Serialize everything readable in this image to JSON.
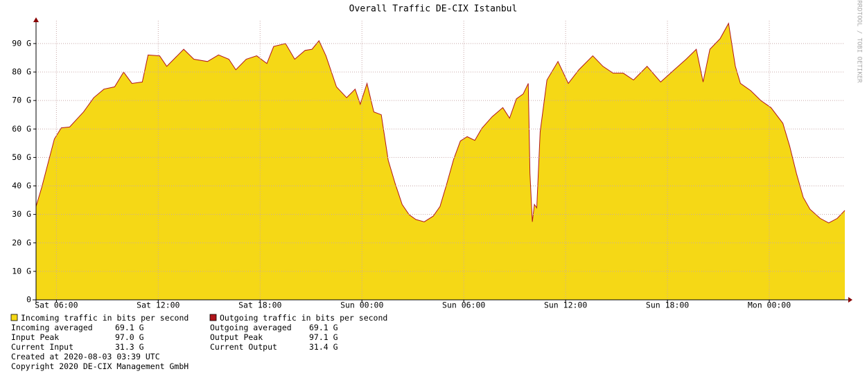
{
  "chart_data": {
    "type": "area",
    "title": "Overall Traffic DE-CIX Istanbul",
    "side_label": "RRDTOOL / TOBI OETIKER",
    "x": [
      4.8,
      5.14,
      5.55,
      5.88,
      6.29,
      6.78,
      7.18,
      7.6,
      8.2,
      8.8,
      9.43,
      9.96,
      10.45,
      11.06,
      11.4,
      12.08,
      12.5,
      13.5,
      14.1,
      14.9,
      15.55,
      16.16,
      16.57,
      17.18,
      17.8,
      18.4,
      18.8,
      19.5,
      20.04,
      20.65,
      21.06,
      21.47,
      21.88,
      22.5,
      23.1,
      23.6,
      23.9,
      24.3,
      24.7,
      25.14,
      25.55,
      25.96,
      26.37,
      26.78,
      27.18,
      27.67,
      28.2,
      28.6,
      29.0,
      29.4,
      29.8,
      30.2,
      30.65,
      31.06,
      31.67,
      32.3,
      32.7,
      33.1,
      33.5,
      33.8,
      33.9,
      34.04,
      34.16,
      34.3,
      34.5,
      34.9,
      35.55,
      36.16,
      36.78,
      37.6,
      38.2,
      38.8,
      39.4,
      40.0,
      40.8,
      41.6,
      42.4,
      43.1,
      43.7,
      44.1,
      44.5,
      45.1,
      45.6,
      46.0,
      46.3,
      46.9,
      47.5,
      48.1,
      48.8,
      49.2,
      49.6,
      50.0,
      50.4,
      51.0,
      51.5,
      52.0,
      52.45
    ],
    "series": [
      {
        "name": "Incoming traffic in bits per second",
        "color": "#f5d816",
        "values": [
          32.8,
          39.6,
          49,
          56.5,
          60.4,
          60.7,
          63.3,
          66,
          71,
          74,
          74.8,
          80,
          76,
          76.5,
          86,
          85.7,
          82,
          88,
          84.5,
          83.7,
          86,
          84.5,
          80.8,
          84.5,
          85.7,
          83,
          89,
          90,
          84.5,
          87.6,
          88,
          91,
          85.7,
          74.8,
          71,
          74,
          68.7,
          76,
          66,
          65,
          49,
          40.8,
          33.5,
          29.9,
          28.2,
          27.4,
          29.4,
          32.8,
          40.8,
          49.3,
          55.8,
          57.3,
          56,
          60.2,
          64.3,
          67.5,
          63.8,
          70.6,
          72.3,
          76,
          44.4,
          27.4,
          33.5,
          32.3,
          59,
          77.2,
          83.7,
          76,
          80.8,
          85.7,
          82,
          79.6,
          79.6,
          77.2,
          82,
          76.5,
          80.8,
          84.5,
          88,
          76.5,
          88,
          91.7,
          97,
          82,
          76,
          73.5,
          70,
          67.5,
          62,
          54,
          44.4,
          36,
          31.8,
          28.6,
          27,
          28.6,
          31.3
        ]
      },
      {
        "name": "Outgoing traffic in bits per second",
        "color": "#b0151b",
        "values": [
          32.8,
          39.6,
          49,
          56.5,
          60.4,
          60.7,
          63.3,
          66,
          71,
          74,
          74.8,
          80,
          76,
          76.5,
          86,
          85.7,
          82,
          88,
          84.5,
          83.7,
          86,
          84.5,
          80.8,
          84.5,
          85.7,
          83,
          89,
          90,
          84.5,
          87.6,
          88,
          91,
          85.7,
          74.8,
          71,
          74,
          68.7,
          76,
          66,
          65,
          49,
          40.8,
          33.5,
          29.9,
          28.2,
          27.4,
          29.4,
          32.8,
          40.8,
          49.3,
          55.8,
          57.3,
          56,
          60.2,
          64.3,
          67.5,
          63.8,
          70.6,
          72.3,
          76,
          44.4,
          27.4,
          33.5,
          32.3,
          59,
          77.2,
          83.7,
          76,
          80.8,
          85.7,
          82,
          79.6,
          79.6,
          77.2,
          82,
          76.5,
          80.8,
          84.5,
          88,
          76.5,
          88,
          91.7,
          97.1,
          82,
          76,
          73.5,
          70,
          67.5,
          62,
          54,
          44.4,
          36,
          31.8,
          28.6,
          27,
          28.6,
          31.4
        ]
      }
    ],
    "xlim": [
      4.8,
      52.45
    ],
    "xticks": [
      {
        "value": 6,
        "label": "Sat 06:00"
      },
      {
        "value": 12,
        "label": "Sat 12:00"
      },
      {
        "value": 18,
        "label": "Sat 18:00"
      },
      {
        "value": 24,
        "label": "Sun 00:00"
      },
      {
        "value": 30,
        "label": "Sun 06:00"
      },
      {
        "value": 36,
        "label": "Sun 12:00"
      },
      {
        "value": 42,
        "label": "Sun 18:00"
      },
      {
        "value": 48,
        "label": "Mon 00:00"
      }
    ],
    "ylim": [
      0,
      98
    ],
    "yticks": [
      0,
      {
        "value": 10,
        "label": "10 G"
      },
      {
        "value": 20,
        "label": "20 G"
      },
      {
        "value": 30,
        "label": "30 G"
      },
      {
        "value": 40,
        "label": "40 G"
      },
      {
        "value": 50,
        "label": "50 G"
      },
      {
        "value": 60,
        "label": "60 G"
      },
      {
        "value": 70,
        "label": "70 G"
      },
      {
        "value": 80,
        "label": "80 G"
      },
      {
        "value": 90,
        "label": "90 G"
      }
    ],
    "grid": true,
    "stats": [
      [
        {
          "label": "Incoming averaged",
          "value": "69.1 G"
        },
        {
          "label": "Outgoing averaged",
          "value": "69.1 G"
        }
      ],
      [
        {
          "label": "Input Peak",
          "value": "97.0 G"
        },
        {
          "label": "Output Peak",
          "value": "97.1 G"
        }
      ],
      [
        {
          "label": "Current Input",
          "value": "31.3 G"
        },
        {
          "label": "Current Output",
          "value": "31.4 G"
        }
      ]
    ],
    "footer": [
      "Created at 2020-08-03 03:39 UTC",
      "Copyright 2020 DE-CIX Management GmbH"
    ]
  }
}
